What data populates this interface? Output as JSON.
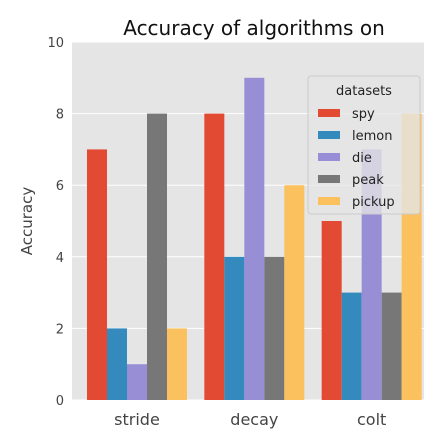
{
  "chart_data": {
    "type": "bar",
    "title": "Accuracy of algorithms on different datasets",
    "xlabel": "",
    "ylabel": "Accuracy",
    "ylim": [
      0,
      10
    ],
    "yticks": [
      0,
      2,
      4,
      6,
      8,
      10
    ],
    "categories": [
      "stride",
      "decay",
      "colt"
    ],
    "grid": true,
    "legend": {
      "title": "datasets",
      "placement": "top-right"
    },
    "series": [
      {
        "name": "spy",
        "color": "#e24a33",
        "values": [
          7,
          8,
          5
        ]
      },
      {
        "name": "lemon",
        "color": "#348abd",
        "values": [
          2,
          4,
          3
        ]
      },
      {
        "name": "die",
        "color": "#988ed5",
        "values": [
          1,
          9,
          7
        ]
      },
      {
        "name": "peak",
        "color": "#777777",
        "values": [
          8,
          4,
          3
        ]
      },
      {
        "name": "pickup",
        "color": "#fbc15e",
        "values": [
          2,
          6,
          8
        ]
      }
    ],
    "colors": {
      "plot_background": "#e5e5e5",
      "grid": "#ffffff"
    }
  }
}
